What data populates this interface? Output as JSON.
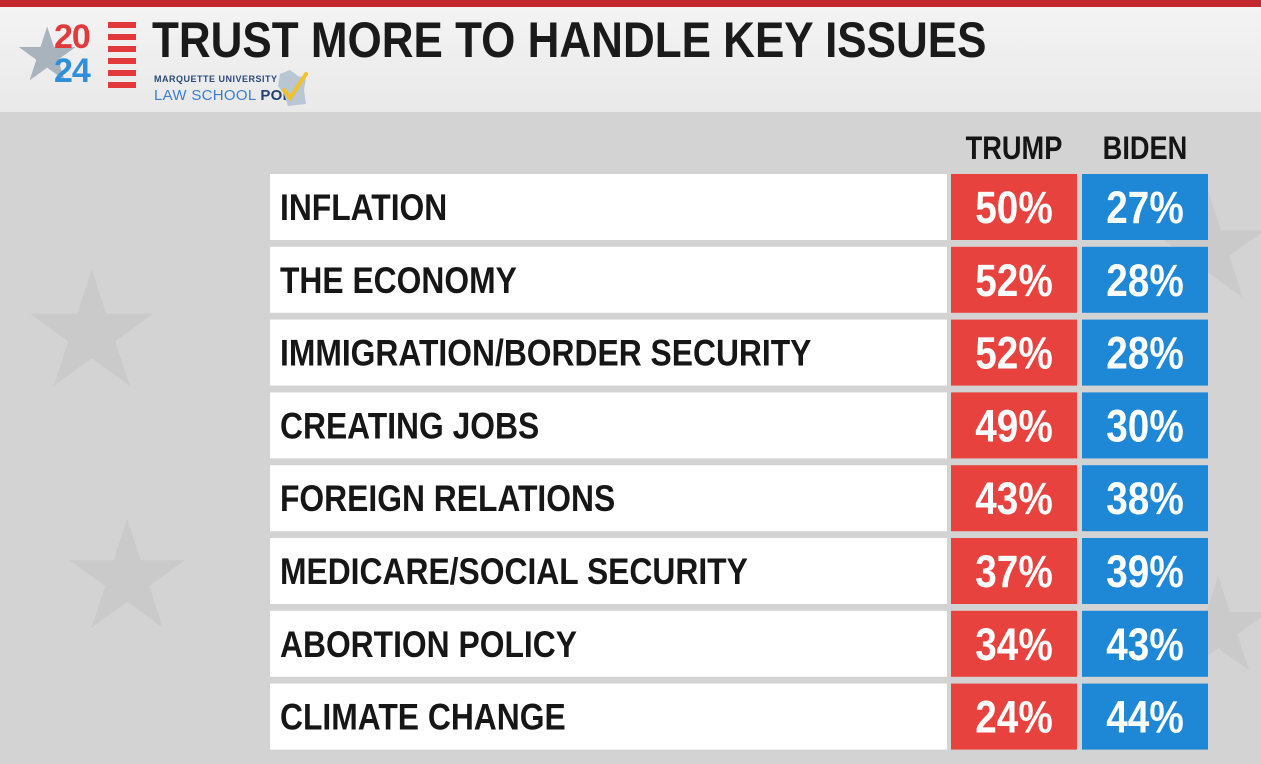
{
  "title": "TRUST MORE TO HANDLE KEY ISSUES",
  "logo": {
    "year_top": "20",
    "year_bottom": "24",
    "org_line1": "MARQUETTE UNIVERSITY",
    "org_line2_a": "LAW SCHOOL",
    "org_line2_b": "POLL"
  },
  "colors": {
    "trump": "#e8423f",
    "biden": "#1e87d6",
    "row_bg": "#ffffff",
    "text": "#161616"
  },
  "chart_data": {
    "type": "table",
    "title": "TRUST MORE TO HANDLE KEY ISSUES",
    "columns": [
      "TRUMP",
      "BIDEN"
    ],
    "categories": [
      "INFLATION",
      "THE ECONOMY",
      "IMMIGRATION/BORDER SECURITY",
      "CREATING JOBS",
      "FOREIGN RELATIONS",
      "MEDICARE/SOCIAL SECURITY",
      "ABORTION POLICY",
      "CLIMATE CHANGE"
    ],
    "series": [
      {
        "name": "TRUMP",
        "values": [
          50,
          52,
          52,
          49,
          43,
          37,
          34,
          24
        ],
        "color": "#e8423f"
      },
      {
        "name": "BIDEN",
        "values": [
          27,
          28,
          28,
          30,
          38,
          39,
          43,
          44
        ],
        "color": "#1e87d6"
      }
    ],
    "unit": "%"
  }
}
